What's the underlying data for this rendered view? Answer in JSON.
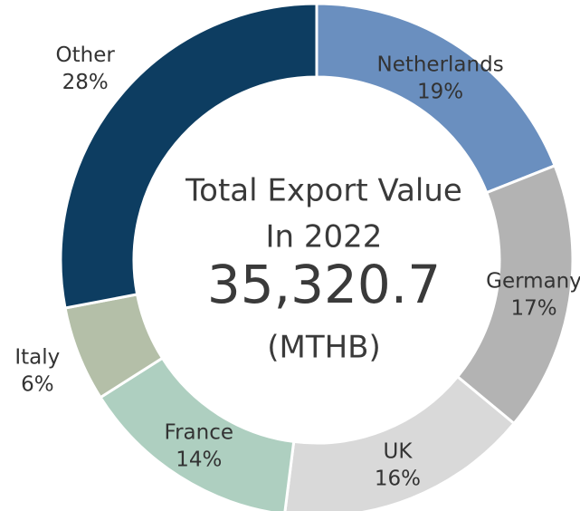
{
  "chart_data": {
    "type": "donut",
    "categories": [
      "Netherlands",
      "Germany",
      "UK",
      "France",
      "Italy",
      "Other"
    ],
    "values": [
      19,
      17,
      16,
      14,
      6,
      28
    ],
    "value_labels": [
      "19%",
      "17%",
      "16%",
      "14%",
      "6%",
      "28%"
    ],
    "colors": [
      "#6a8fbf",
      "#b3b3b3",
      "#d9d9d9",
      "#aecfc0",
      "#b4bfa8",
      "#0d3d61"
    ],
    "center_text": [
      "Total Export Value",
      "In 2022"
    ],
    "center_value_label": "35,320.7",
    "center_unit": "(MTHB)"
  }
}
